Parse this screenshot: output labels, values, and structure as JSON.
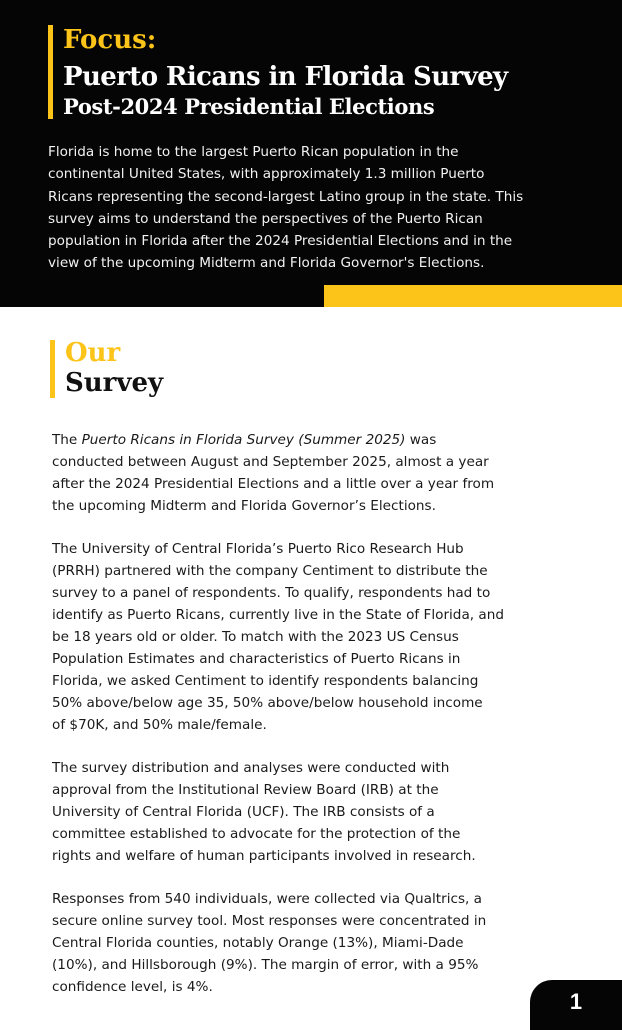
{
  "header": {
    "focus": "Focus:",
    "title": "Puerto Ricans in Florida Survey",
    "subtitle": "Post-2024 Presidential Elections",
    "intro_lines": [
      "Florida is home to the largest Puerto Rican population in the",
      "continental United States, with approximately 1.3 million Puerto",
      "Ricans representing the second-largest Latino group in the state. This",
      "survey aims to understand the perspectives of the Puerto Rican",
      "population in Florida after the 2024 Presidential Elections and in the",
      "view of the upcoming Midterm and Florida Governor's Elections."
    ]
  },
  "section": {
    "heading_1": "Our",
    "heading_2": "Survey",
    "p1": {
      "line1_a": "The ",
      "line1_italic": "Puerto Ricans in Florida Survey (Summer 2025)",
      "line1_b": " was",
      "lines": [
        "conducted between August and September 2025, almost a year",
        "after the 2024 Presidential Elections and a little over a year from",
        "the upcoming Midterm and Florida Governor’s Elections."
      ]
    },
    "p2": [
      "The University of Central Florida’s Puerto Rico Research Hub",
      "(PRRH) partnered with the company Centiment to distribute the",
      "survey to a panel of respondents. To qualify, respondents had to",
      "identify as Puerto Ricans, currently live in the State of Florida, and",
      "be 18 years old or older. To match with the 2023 US Census",
      "Population Estimates and characteristics of Puerto Ricans in",
      "Florida, we asked Centiment to identify respondents balancing",
      "50% above/below age 35, 50% above/below household income",
      "of $70K, and 50% male/female."
    ],
    "p3": [
      "The survey distribution and analyses were conducted with",
      "approval from the Institutional Review Board (IRB) at the",
      "University of Central Florida (UCF). The IRB consists of a",
      "committee established to advocate for the protection of the",
      "rights and welfare of human participants involved in research."
    ],
    "p4": [
      "Responses from 540 individuals, were collected via Qualtrics, a",
      "secure online survey tool. Most responses were concentrated in",
      "Central Florida counties, notably Orange (13%), Miami-Dade",
      "(10%), and Hillsborough (9%). The margin of error, with a 95%",
      "confidence level, is 4%."
    ]
  },
  "page_number": "1",
  "colors": {
    "accent": "#fcc419",
    "dark": "#050505"
  }
}
